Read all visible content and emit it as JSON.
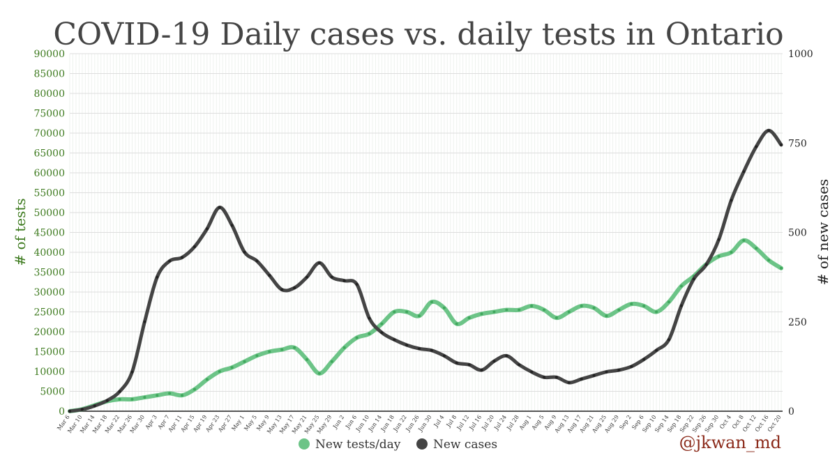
{
  "chart_data": {
    "type": "line",
    "title": "COVID-19 Daily cases vs. daily tests in Ontario",
    "ylabel_left": "# of tests",
    "ylabel_right": "# of new cases",
    "ylim_left": [
      0,
      90000
    ],
    "ylim_right": [
      0,
      1000
    ],
    "yticks_left": [
      "0",
      "5000",
      "10000",
      "15000",
      "20000",
      "25000",
      "30000",
      "35000",
      "40000",
      "45000",
      "50000",
      "55000",
      "60000",
      "65000",
      "70000",
      "75000",
      "80000",
      "85000",
      "90000"
    ],
    "yticks_right": [
      "0",
      "250",
      "500",
      "750",
      "1000"
    ],
    "grid": true,
    "legend_position": "bottom-center",
    "credit": "@jkwan_md",
    "x": [
      "Mar 6",
      "Mar 10",
      "Mar 14",
      "Mar 18",
      "Mar 22",
      "Mar 26",
      "Mar 30",
      "Apr 3",
      "Apr 7",
      "Apr 11",
      "Apr 15",
      "Apr 19",
      "Apr 23",
      "Apr 27",
      "May 1",
      "May 5",
      "May 9",
      "May 13",
      "May 17",
      "May 21",
      "May 25",
      "May 29",
      "Jun 2",
      "Jun 6",
      "Jun 10",
      "Jun 14",
      "Jun 18",
      "Jun 22",
      "Jun 26",
      "Jun 30",
      "Jul 4",
      "Jul 8",
      "Jul 12",
      "Jul 16",
      "Jul 20",
      "Jul 24",
      "Jul 28",
      "Aug 1",
      "Aug 5",
      "Aug 9",
      "Aug 13",
      "Aug 17",
      "Aug 21",
      "Aug 25",
      "Aug 29",
      "Sep 2",
      "Sep 6",
      "Sep 10",
      "Sep 14",
      "Sep 18",
      "Sep 22",
      "Sep 26",
      "Sep 30",
      "Oct 4",
      "Oct 8",
      "Oct 12",
      "Oct 16",
      "Oct 20"
    ],
    "series": [
      {
        "name": "New tests/day",
        "axis": "left",
        "color": "#6cc487",
        "values": [
          0,
          500,
          1500,
          2500,
          3000,
          3000,
          3500,
          4000,
          4500,
          4000,
          5500,
          8000,
          10000,
          11000,
          12500,
          14000,
          15000,
          15500,
          16000,
          13000,
          9500,
          12500,
          16000,
          18500,
          19500,
          22000,
          25000,
          25000,
          24000,
          27500,
          26000,
          22000,
          23500,
          24500,
          25000,
          25500,
          25500,
          26500,
          25500,
          23500,
          25000,
          26500,
          26000,
          24000,
          25500,
          27000,
          26500,
          25000,
          27500,
          31500,
          34000,
          37000,
          39000,
          40000,
          43000,
          41000,
          38000,
          36000
        ]
      },
      {
        "name": "New cases",
        "axis": "right",
        "color": "#444444",
        "values": [
          0,
          5,
          15,
          30,
          55,
          110,
          250,
          375,
          420,
          430,
          460,
          510,
          570,
          520,
          445,
          420,
          380,
          340,
          345,
          375,
          415,
          375,
          365,
          355,
          260,
          220,
          200,
          185,
          175,
          170,
          155,
          135,
          130,
          115,
          140,
          155,
          130,
          110,
          95,
          95,
          80,
          90,
          100,
          110,
          115,
          125,
          145,
          170,
          200,
          295,
          370,
          410,
          480,
          590,
          670,
          740,
          785,
          745
        ]
      }
    ]
  }
}
